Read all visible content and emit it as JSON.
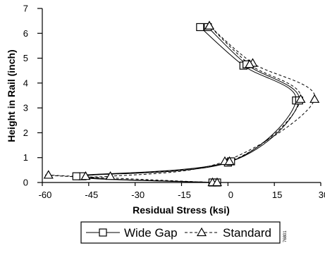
{
  "chart_data": {
    "type": "line",
    "title": "",
    "xlabel": "Residual Stress (ksi)",
    "ylabel": "Height in Rail (inch)",
    "xlim": [
      -60,
      30
    ],
    "ylim": [
      0,
      7
    ],
    "xticks": [
      "-60",
      "-45",
      "-30",
      "-15",
      "0",
      "15",
      "30"
    ],
    "yticks": [
      "0",
      "1",
      "2",
      "3",
      "4",
      "5",
      "6",
      "7"
    ],
    "grid": false,
    "legend_position": "bottom-center",
    "figure_id": "76801",
    "series": [
      {
        "name": "Wide Gap",
        "marker": "square",
        "dash": "solid",
        "points": [
          [
            -3.5,
            0.0
          ],
          [
            -47,
            0.25
          ],
          [
            0,
            0.8
          ],
          [
            22,
            3.3
          ],
          [
            5,
            4.7
          ],
          [
            -9,
            6.25
          ]
        ]
      },
      {
        "name": "Wide Gap",
        "marker": "square",
        "dash": "solid",
        "points": [
          [
            -5,
            0.0
          ],
          [
            -49,
            0.25
          ],
          [
            1,
            0.85
          ],
          [
            23,
            3.3
          ],
          [
            6,
            4.75
          ],
          [
            -6.5,
            6.25
          ]
        ]
      },
      {
        "name": "Standard",
        "marker": "triangle",
        "dash": "dashed",
        "points": [
          [
            -5,
            0.0
          ],
          [
            -58,
            0.3
          ],
          [
            -38,
            0.25
          ],
          [
            -1,
            0.85
          ],
          [
            28,
            3.35
          ],
          [
            8,
            4.8
          ],
          [
            -6,
            6.3
          ]
        ]
      },
      {
        "name": "Standard",
        "marker": "triangle",
        "dash": "dashed",
        "points": [
          [
            -3.5,
            0.0
          ],
          [
            -46,
            0.25
          ],
          [
            0.5,
            0.85
          ],
          [
            23.5,
            3.35
          ],
          [
            7,
            4.75
          ],
          [
            -6,
            6.3
          ]
        ]
      }
    ]
  }
}
